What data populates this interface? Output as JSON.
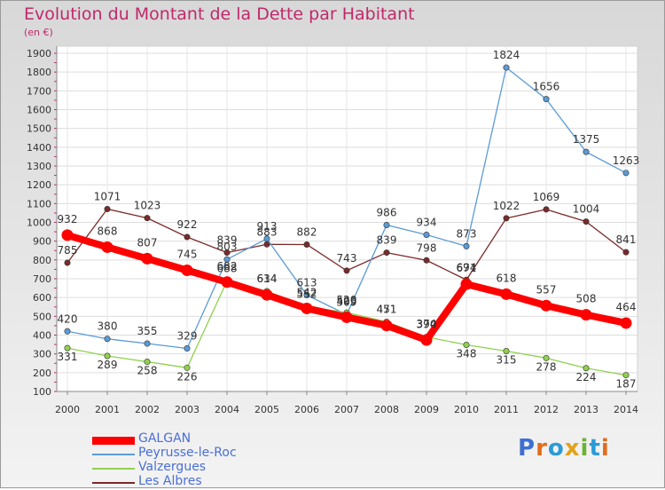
{
  "title": "Evolution du Montant de la Dette par Habitant",
  "subtitle": "(en €)",
  "logo": "Proxiti",
  "chart_data": {
    "type": "line",
    "categories": [
      "2000",
      "2001",
      "2002",
      "2003",
      "2004",
      "2005",
      "2006",
      "2007",
      "2008",
      "2009",
      "2010",
      "2011",
      "2012",
      "2013",
      "2014"
    ],
    "ylim": [
      100,
      1900
    ],
    "yticks": [
      100,
      200,
      300,
      400,
      500,
      600,
      700,
      800,
      900,
      1000,
      1100,
      1200,
      1300,
      1400,
      1500,
      1600,
      1700,
      1800,
      1900
    ],
    "grid": true,
    "legend_position": "bottom-left",
    "series": [
      {
        "name": "GALGAN",
        "color": "#ff0000",
        "values": [
          932,
          868,
          807,
          745,
          682,
          614,
          542,
          495,
          451,
          374,
          671,
          618,
          557,
          508,
          464
        ]
      },
      {
        "name": "Peyrusse-le-Roc",
        "color": "#5b9bd5",
        "values": [
          420,
          380,
          355,
          329,
          803,
          913,
          613,
          509,
          986,
          934,
          873,
          1824,
          1656,
          1375,
          1263
        ]
      },
      {
        "name": "Valzergues",
        "color": "#92d050",
        "values": [
          331,
          289,
          258,
          226,
          688,
          634,
          552,
          520,
          471,
          390,
          348,
          315,
          278,
          224,
          187
        ]
      },
      {
        "name": "Les Albres",
        "color": "#7b2a2a",
        "values": [
          785,
          1071,
          1023,
          922,
          839,
          883,
          882,
          743,
          839,
          798,
          694,
          1022,
          1069,
          1004,
          841
        ]
      }
    ]
  }
}
